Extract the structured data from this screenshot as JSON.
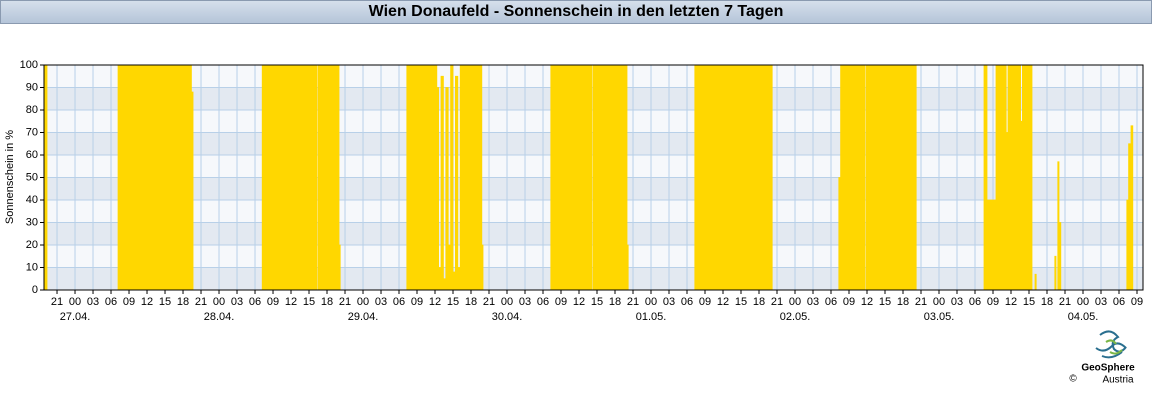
{
  "chart_data": {
    "type": "area",
    "title": "Wien Donaufeld - Sonnenschein in den letzten 7 Tagen",
    "y_label": "Sonnenschein in %",
    "logo": {
      "name": "GeoSphere",
      "sub": "Austria",
      "copyright": "©"
    },
    "color": "#ffd700",
    "grid": true,
    "xlim": [
      -5.17,
      178
    ],
    "ylim": [
      0,
      100
    ],
    "yticks": [
      0,
      10,
      20,
      30,
      40,
      50,
      60,
      70,
      80,
      90,
      100
    ],
    "xticks": [
      {
        "value": -3,
        "label": "21"
      },
      {
        "value": 0,
        "label": "00"
      },
      {
        "value": 3,
        "label": "03"
      },
      {
        "value": 6,
        "label": "06"
      },
      {
        "value": 9,
        "label": "09"
      },
      12,
      15,
      18,
      21,
      {
        "value": 24,
        "label": "00"
      },
      {
        "value": 27,
        "label": "03"
      },
      {
        "value": 30,
        "label": "06"
      },
      {
        "value": 33,
        "label": "09"
      },
      {
        "value": 36,
        "label": "12"
      },
      {
        "value": 39,
        "label": "15"
      },
      {
        "value": 42,
        "label": "18"
      },
      {
        "value": 45,
        "label": "21"
      },
      {
        "value": 48,
        "label": "00"
      },
      {
        "value": 51,
        "label": "03"
      },
      {
        "value": 54,
        "label": "06"
      },
      {
        "value": 57,
        "label": "09"
      },
      {
        "value": 60,
        "label": "12"
      },
      {
        "value": 63,
        "label": "15"
      },
      {
        "value": 66,
        "label": "18"
      },
      {
        "value": 69,
        "label": "21"
      },
      {
        "value": 72,
        "label": "00"
      },
      {
        "value": 75,
        "label": "03"
      },
      {
        "value": 78,
        "label": "06"
      },
      {
        "value": 81,
        "label": "09"
      },
      {
        "value": 84,
        "label": "12"
      },
      {
        "value": 87,
        "label": "15"
      },
      {
        "value": 90,
        "label": "18"
      },
      {
        "value": 93,
        "label": "21"
      },
      {
        "value": 96,
        "label": "00"
      },
      {
        "value": 99,
        "label": "03"
      },
      {
        "value": 102,
        "label": "06"
      },
      {
        "value": 105,
        "label": "09"
      },
      {
        "value": 108,
        "label": "12"
      },
      {
        "value": 111,
        "label": "15"
      },
      {
        "value": 114,
        "label": "18"
      },
      {
        "value": 117,
        "label": "21"
      },
      {
        "value": 120,
        "label": "00"
      },
      {
        "value": 123,
        "label": "03"
      },
      {
        "value": 126,
        "label": "06"
      },
      {
        "value": 129,
        "label": "09"
      },
      {
        "value": 132,
        "label": "12"
      },
      {
        "value": 135,
        "label": "15"
      },
      {
        "value": 138,
        "label": "18"
      },
      {
        "value": 141,
        "label": "21"
      },
      {
        "value": 144,
        "label": "00"
      },
      {
        "value": 147,
        "label": "03"
      },
      {
        "value": 150,
        "label": "06"
      },
      {
        "value": 153,
        "label": "09"
      },
      {
        "value": 156,
        "label": "12"
      },
      {
        "value": 159,
        "label": "15"
      },
      {
        "value": 162,
        "label": "18"
      },
      {
        "value": 165,
        "label": "21"
      },
      {
        "value": 168,
        "label": "00"
      },
      {
        "value": 171,
        "label": "03"
      },
      {
        "value": 174,
        "label": "06"
      },
      {
        "value": 177,
        "label": "09"
      }
    ],
    "date_ticks": [
      {
        "value": 0,
        "label": "27.04."
      },
      {
        "value": 24,
        "label": "28.04."
      },
      {
        "value": 48,
        "label": "29.04."
      },
      {
        "value": 72,
        "label": "30.04."
      },
      {
        "value": 96,
        "label": "01.05."
      },
      {
        "value": 120,
        "label": "02.05."
      },
      {
        "value": 144,
        "label": "03.05."
      },
      {
        "value": 168,
        "label": "04.05."
      }
    ],
    "x": [
      -5.17,
      -4.67,
      -4.67,
      7.17,
      7.17,
      19.4,
      19.4,
      19.67,
      19.67,
      31.2,
      31.2,
      40.3,
      40.3,
      40.5,
      40.5,
      44.0,
      44.0,
      44.2,
      44.2,
      55.3,
      55.3,
      60.3,
      60.3,
      60.6,
      60.6,
      61.0,
      61.0,
      61.4,
      61.4,
      61.8,
      61.8,
      62.2,
      62.2,
      62.6,
      62.6,
      63.0,
      63.0,
      63.4,
      63.4,
      63.8,
      63.8,
      64.2,
      64.2,
      67.8,
      67.8,
      68.0,
      68.0,
      79.3,
      79.3,
      86.1,
      86.1,
      86.3,
      86.3,
      92.0,
      92.0,
      92.2,
      92.2,
      103.3,
      103.3,
      116.2,
      116.2,
      127.3,
      127.3,
      127.6,
      127.6,
      131.6,
      131.6,
      131.8,
      131.8,
      140.2,
      140.2,
      151.5,
      151.5,
      152.0,
      152.0,
      153.5,
      153.5,
      155.2,
      155.2,
      155.5,
      155.5,
      157.6,
      157.6,
      157.9,
      157.9,
      159.5,
      159.5,
      160.0,
      160.0,
      160.2,
      160.2,
      163.3,
      163.3,
      163.5,
      163.5,
      163.8,
      163.8,
      164.0,
      164.0,
      164.3,
      164.3,
      175.3,
      175.3,
      175.6,
      175.6,
      176.0,
      176.0,
      176.3,
      176.3
    ],
    "values": [
      100,
      100,
      0,
      0,
      100,
      100,
      88,
      88,
      0,
      0,
      100,
      100,
      0,
      0,
      100,
      100,
      20,
      20,
      0,
      0,
      100,
      100,
      90,
      90,
      10,
      10,
      95,
      95,
      5,
      5,
      90,
      90,
      20,
      20,
      100,
      100,
      8,
      8,
      95,
      95,
      10,
      10,
      100,
      100,
      20,
      20,
      0,
      0,
      100,
      100,
      0,
      0,
      100,
      100,
      20,
      20,
      0,
      0,
      100,
      100,
      0,
      0,
      50,
      50,
      100,
      100,
      0,
      0,
      100,
      100,
      0,
      0,
      100,
      100,
      40,
      40,
      100,
      100,
      70,
      70,
      100,
      100,
      75,
      75,
      100,
      100,
      0,
      0,
      7,
      7,
      0,
      0,
      15,
      15,
      0,
      0,
      57,
      57,
      30,
      30,
      0,
      0,
      40,
      40,
      65,
      65,
      73,
      73,
      0
    ]
  }
}
